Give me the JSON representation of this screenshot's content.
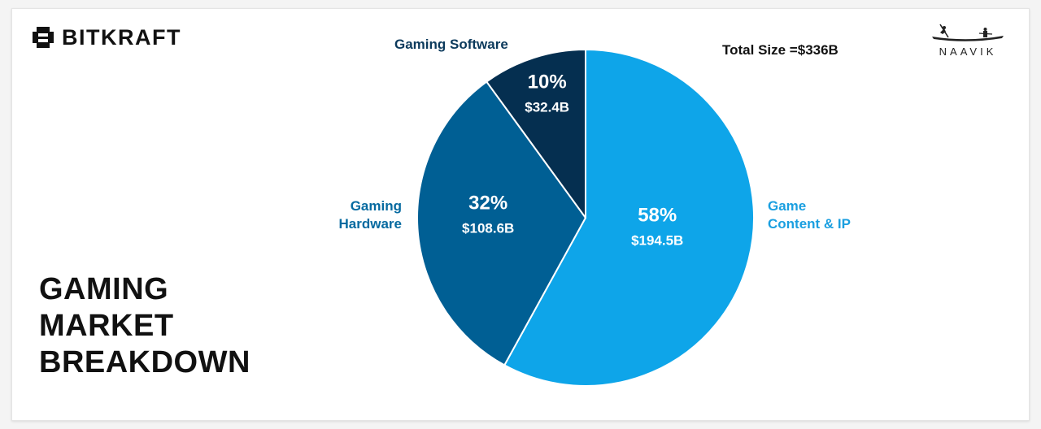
{
  "brand_left": {
    "name": "BITKRAFT",
    "icon": "bitkraft-logo-icon"
  },
  "brand_right": {
    "name": "NAAVIK",
    "icon": "boat-logo-icon"
  },
  "total_label": "Total Size =$336B",
  "title_lines": [
    "GAMING",
    "MARKET",
    "BREAKDOWN"
  ],
  "chart_data": {
    "type": "pie",
    "title": "GAMING MARKET BREAKDOWN",
    "total": "Total Size =$336B",
    "slices": [
      {
        "category": "Game Content & IP",
        "label_lines": [
          "Game",
          "Content & IP"
        ],
        "percent": 58,
        "percent_label": "58%",
        "value": 194.5,
        "value_label": "$194.5B",
        "color": "#0ea5e9"
      },
      {
        "category": "Gaming Hardware",
        "label_lines": [
          "Gaming",
          "Hardware"
        ],
        "percent": 32,
        "percent_label": "32%",
        "value": 108.6,
        "value_label": "$108.6B",
        "color": "#005f94"
      },
      {
        "category": "Gaming Software",
        "label_lines": [
          "Gaming Software"
        ],
        "percent": 10,
        "percent_label": "10%",
        "value": 32.4,
        "value_label": "$32.4B",
        "color": "#052f50"
      }
    ],
    "label_colors": [
      "#1a9fe0",
      "#066aa0",
      "#0c3a5c"
    ]
  }
}
